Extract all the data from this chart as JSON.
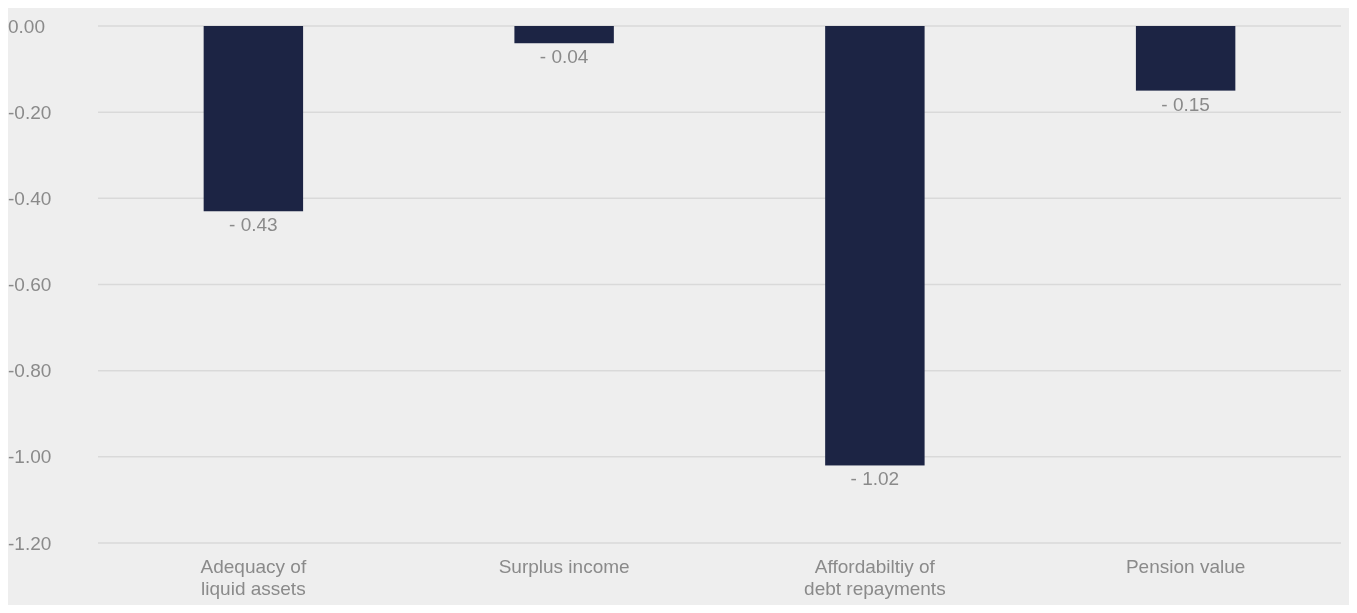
{
  "chart_data": {
    "type": "bar",
    "categories": [
      "Adequacy of liquid assets",
      "Surplus income",
      "Affordabiltiy of debt repayments",
      "Pension value"
    ],
    "values": [
      -0.43,
      -0.04,
      -1.02,
      -0.15
    ],
    "value_labels": [
      "- 0.43",
      "- 0.04",
      "- 1.02",
      "- 0.15"
    ],
    "color": "#1c2444",
    "ylim": [
      -1.2,
      0
    ],
    "yticks": [
      {
        "value": 0,
        "label": "0.00"
      },
      {
        "value": -0.2,
        "label": "-0.20"
      },
      {
        "value": -0.4,
        "label": "-0.40"
      },
      {
        "value": -0.6,
        "label": "-0.60"
      },
      {
        "value": -0.8,
        "label": "-0.80"
      },
      {
        "value": -1,
        "label": "-1.00"
      },
      {
        "value": -1.2,
        "label": "-1.20"
      }
    ],
    "grid": "y"
  }
}
